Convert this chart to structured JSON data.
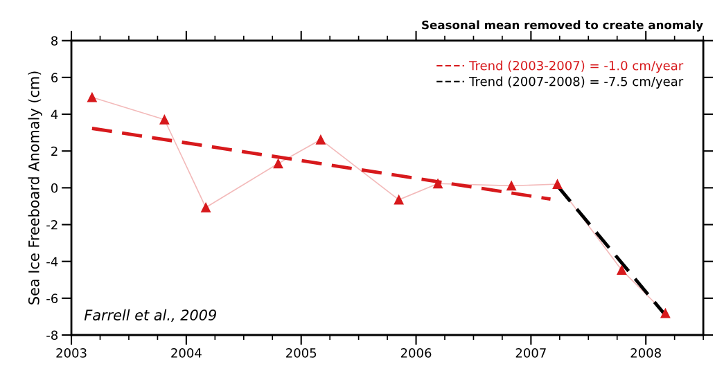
{
  "chart_data": {
    "type": "line",
    "title": "Seasonal mean removed to create anomaly",
    "ylabel": "Sea Ice Freeboard Anomaly (cm)",
    "annotations": [
      "Farrell et al., 2009"
    ],
    "xlim": [
      2003,
      2008.5
    ],
    "xticks": [
      2003,
      2004,
      2005,
      2006,
      2007,
      2008
    ],
    "ylim": [
      -8,
      8
    ],
    "yticks": [
      -8,
      -6,
      -4,
      -2,
      0,
      2,
      4,
      6,
      8
    ],
    "grid": false,
    "legend": "top right",
    "series": [
      {
        "color": "#d7191c",
        "marker": "triangle",
        "line_style": "solid",
        "x": [
          2003.18,
          2003.81,
          2004.17,
          2004.8,
          2005.17,
          2005.85,
          2006.19,
          2006.83,
          2007.23,
          2007.79,
          2008.17
        ],
        "values": [
          4.92,
          3.71,
          -1.07,
          1.32,
          2.62,
          -0.65,
          0.23,
          0.11,
          0.2,
          -4.47,
          -6.82
        ]
      },
      {
        "name": "Trend (2003-2007) = -1.0 cm/year",
        "color": "#d7191c",
        "marker": "none",
        "line_style": "dashed",
        "x": [
          2003.18,
          2007.17
        ],
        "values": [
          3.23,
          -0.61
        ]
      },
      {
        "name": "Trend (2007-2008) = -7.5 cm/year",
        "color": "#000000",
        "marker": "none",
        "line_style": "dashed",
        "x": [
          2007.23,
          2008.17
        ],
        "values": [
          0.11,
          -6.92
        ]
      }
    ]
  }
}
